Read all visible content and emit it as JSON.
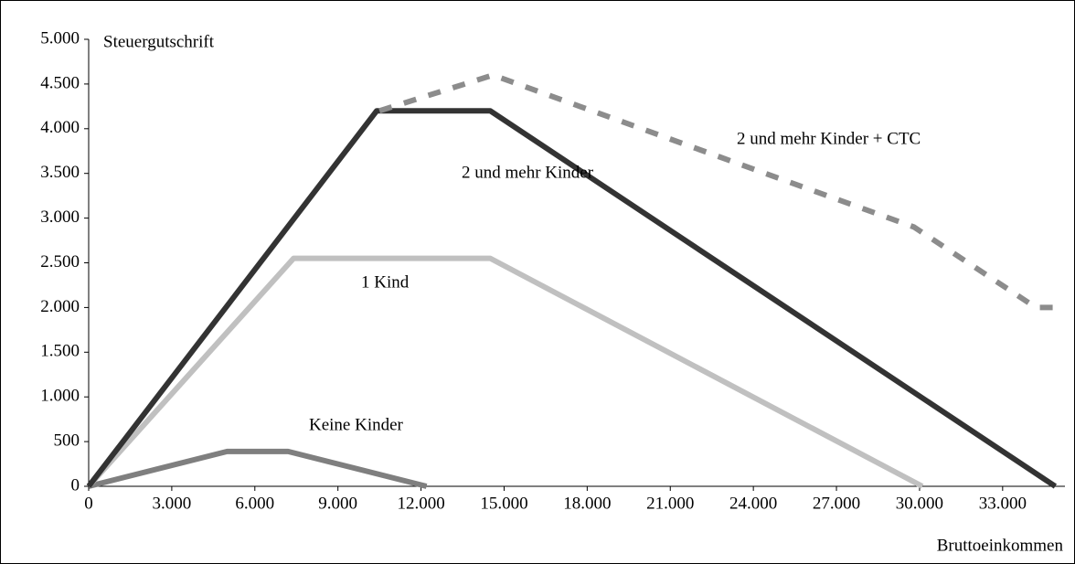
{
  "chart_data": {
    "type": "line",
    "y_label": "Steuergutschrift",
    "x_label": "Bruttoeinkommen",
    "xlim": [
      0,
      35250
    ],
    "ylim": [
      0,
      5000
    ],
    "xticks": [
      0,
      {
        "value": 3000,
        "label": "3.000"
      },
      {
        "value": 6000,
        "label": "6.000"
      },
      {
        "value": 9000,
        "label": "9.000"
      },
      {
        "value": 12000,
        "label": "12.000"
      },
      {
        "value": 15000,
        "label": "15.000"
      },
      {
        "value": 18000,
        "label": "18.000"
      },
      {
        "value": 21000,
        "label": "21.000"
      },
      {
        "value": 24000,
        "label": "24.000"
      },
      {
        "value": 27000,
        "label": "27.000"
      },
      {
        "value": 30000,
        "label": "30.000"
      },
      {
        "value": 33000,
        "label": "33.000"
      }
    ],
    "yticks": [
      0,
      500,
      {
        "value": 1000,
        "label": "1.000"
      },
      {
        "value": 1500,
        "label": "1.500"
      },
      {
        "value": 2000,
        "label": "2.000"
      },
      {
        "value": 2500,
        "label": "2.500"
      },
      {
        "value": 3000,
        "label": "3.000"
      },
      {
        "value": 3500,
        "label": "3.500"
      },
      {
        "value": 4000,
        "label": "4.000"
      },
      {
        "value": 4500,
        "label": "4.500"
      },
      {
        "value": 5000,
        "label": "5.000"
      }
    ],
    "series": [
      {
        "name": "Keine Kinder",
        "color": "#7f7f7f",
        "x": [
          0,
          5000,
          7200,
          12200
        ],
        "values": [
          0,
          390,
          390,
          0
        ]
      },
      {
        "name": "1 Kind",
        "color": "#c0c0c0",
        "x": [
          0,
          7400,
          14500,
          30100
        ],
        "values": [
          0,
          2550,
          2550,
          0
        ]
      },
      {
        "name": "2 und mehr Kinder",
        "color": "#333333",
        "x": [
          0,
          10400,
          14500,
          34900
        ],
        "values": [
          0,
          4200,
          4200,
          0
        ]
      },
      {
        "name": "2 und mehr  Kinder + CTC",
        "color": "#8c8c8c",
        "dashed": true,
        "x": [
          10500,
          14600,
          29800,
          34200,
          35100
        ],
        "values": [
          4200,
          4600,
          2900,
          2000,
          2000
        ]
      }
    ]
  }
}
